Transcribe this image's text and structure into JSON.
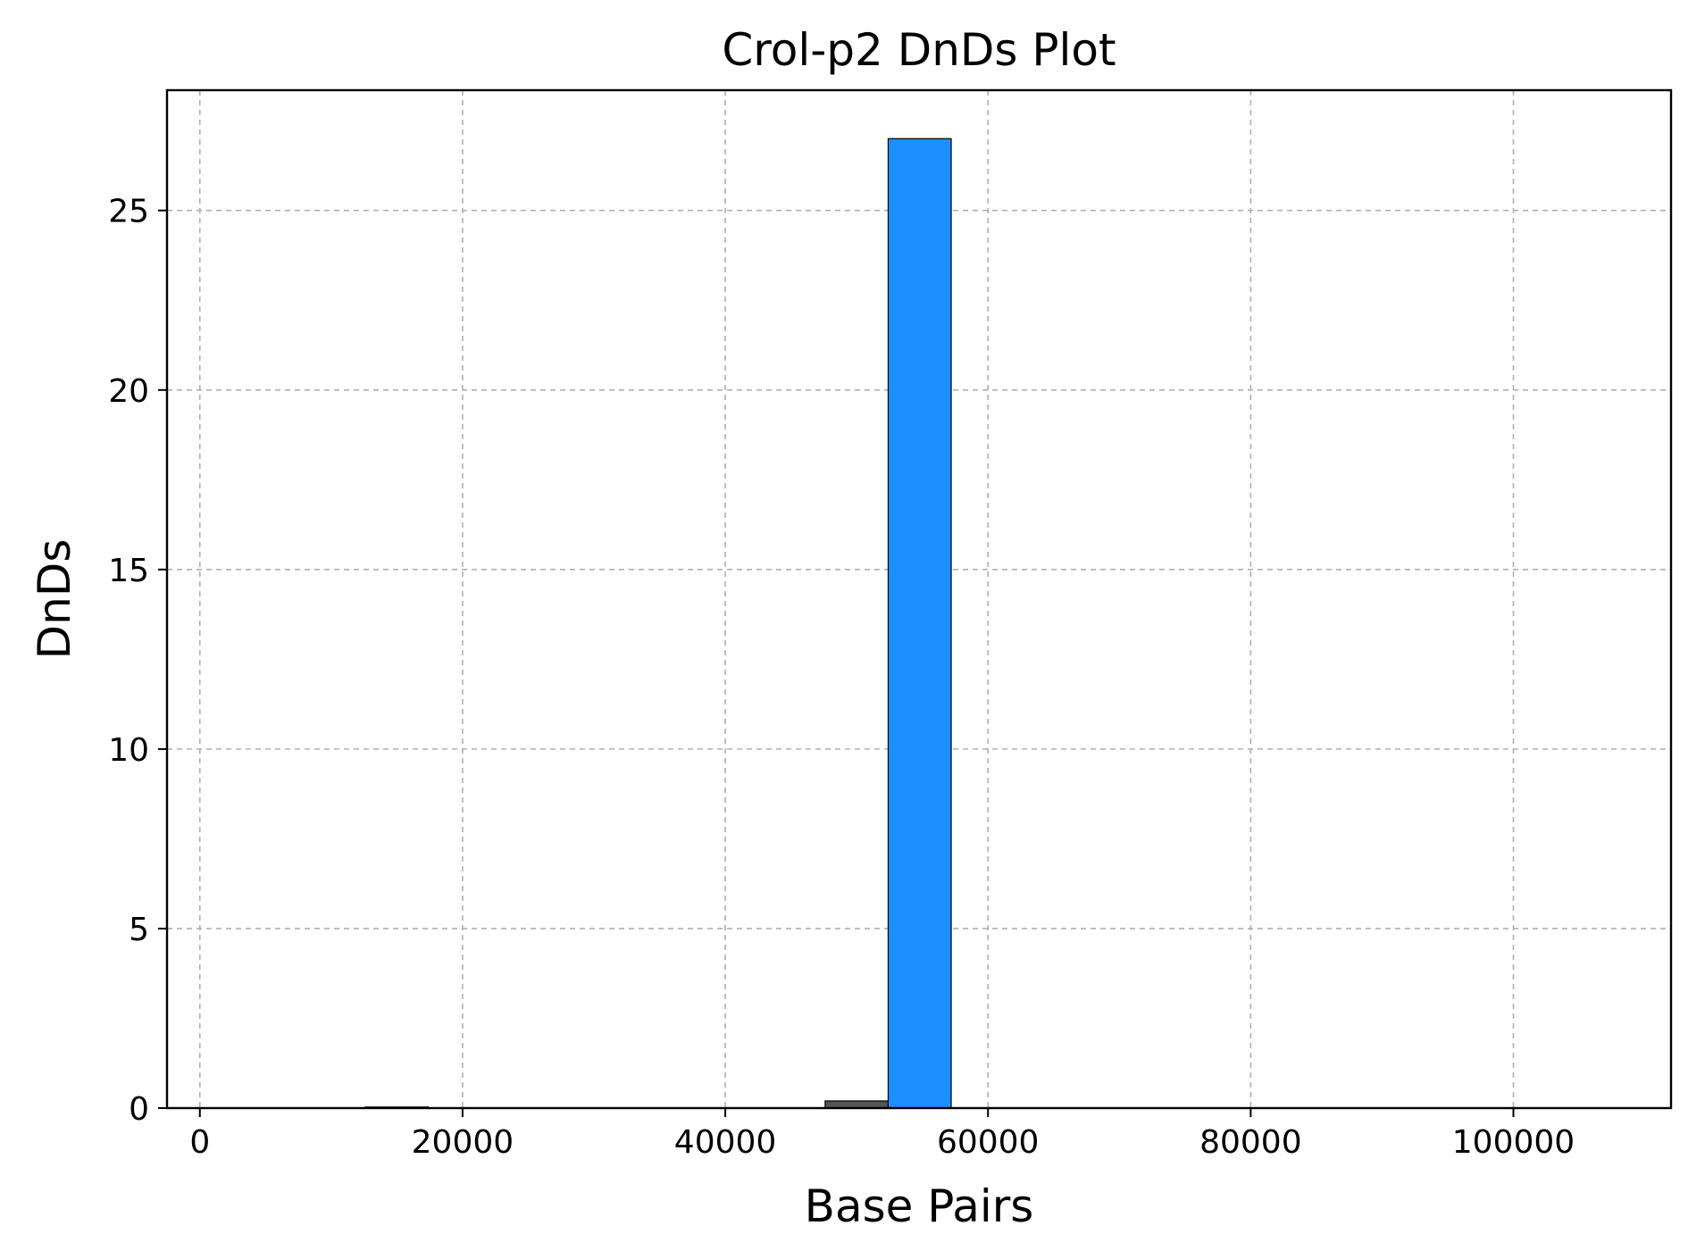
{
  "chart_data": {
    "type": "bar",
    "title": "Crol-p2 DnDs Plot",
    "xlabel": "Base Pairs",
    "ylabel": "DnDs",
    "xlim": [
      -2500,
      112000
    ],
    "ylim": [
      0,
      28.35
    ],
    "xticks": [
      0,
      20000,
      40000,
      60000,
      80000,
      100000
    ],
    "xtick_labels": [
      "0",
      "20000",
      "40000",
      "60000",
      "80000",
      "100000"
    ],
    "yticks": [
      0,
      5,
      10,
      15,
      20,
      25
    ],
    "ytick_labels": [
      "0",
      "5",
      "10",
      "15",
      "20",
      "25"
    ],
    "grid": true,
    "bar_width": 4800,
    "bars": [
      {
        "x": 15000,
        "value": 0.03,
        "color": "#555555"
      },
      {
        "x": 50000,
        "value": 0.2,
        "color": "#555555"
      },
      {
        "x": 54800,
        "value": 27.0,
        "color": "#1e8fff"
      }
    ]
  }
}
